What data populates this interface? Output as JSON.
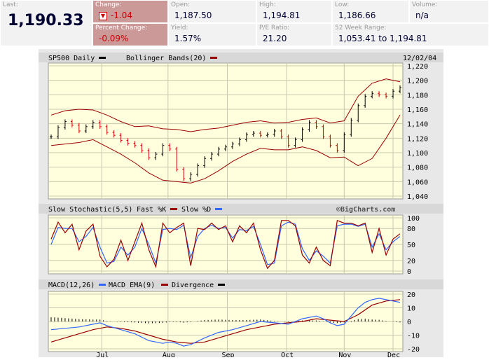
{
  "quote": {
    "last_label": "Last:",
    "last_value": "1,190.33",
    "change_label": "Change:",
    "change_value": "-1.04",
    "pct_label": "Percent Change:",
    "pct_value": "-0.09%",
    "open_label": "Open:",
    "open_value": "1,187.50",
    "yield_label": "Yield:",
    "yield_value": "1.57%",
    "high_label": "High:",
    "high_value": "1,194.81",
    "pe_label": "P/E Ratio:",
    "pe_value": "21.20",
    "low_label": "Low:",
    "low_value": "1,186.66",
    "range_label": "52 Week Range:",
    "range_value": "1,053.41 to 1,194.81",
    "volume_label": "Volume:",
    "volume_value": "n/a"
  },
  "colors": {
    "panel_bg": "#ffffdd",
    "header_bg": "#d8d8d8",
    "price_up": "#000000",
    "price_down": "#cc0000",
    "band": "#990000",
    "fast_k": "#990000",
    "slow_d": "#3366ff",
    "macd": "#3366ff",
    "macd_ema": "#990000",
    "divergence": "#000000"
  },
  "chart_data": {
    "type": "line",
    "date": "12/02/04",
    "watermark": "©BigCharts.com",
    "months": [
      "Jul",
      "Aug",
      "Sep",
      "Oct",
      "Nov",
      "Dec"
    ],
    "month_pos": [
      14.5,
      33.5,
      50.5,
      67.5,
      84,
      98
    ],
    "price": {
      "title": "SP500 Daily",
      "overlay_legend": "Bollinger Bands(20)",
      "ylim": [
        1040,
        1220
      ],
      "yticks": [
        1040,
        1060,
        1080,
        1100,
        1120,
        1140,
        1160,
        1180,
        1200,
        1220
      ],
      "close": [
        [
          0,
          1122
        ],
        [
          2,
          1135
        ],
        [
          4,
          1143
        ],
        [
          6,
          1138
        ],
        [
          8,
          1130
        ],
        [
          10,
          1136
        ],
        [
          12,
          1142
        ],
        [
          14,
          1136
        ],
        [
          16,
          1128
        ],
        [
          18,
          1124
        ],
        [
          20,
          1117
        ],
        [
          22,
          1113
        ],
        [
          24,
          1110
        ],
        [
          26,
          1103
        ],
        [
          28,
          1093
        ],
        [
          30,
          1098
        ],
        [
          32,
          1110
        ],
        [
          34,
          1105
        ],
        [
          36,
          1077
        ],
        [
          38,
          1064
        ],
        [
          40,
          1070
        ],
        [
          42,
          1082
        ],
        [
          44,
          1092
        ],
        [
          46,
          1098
        ],
        [
          48,
          1105
        ],
        [
          50,
          1108
        ],
        [
          52,
          1112
        ],
        [
          54,
          1118
        ],
        [
          56,
          1125
        ],
        [
          58,
          1127
        ],
        [
          60,
          1124
        ],
        [
          62,
          1125
        ],
        [
          64,
          1130
        ],
        [
          66,
          1122
        ],
        [
          68,
          1110
        ],
        [
          70,
          1118
        ],
        [
          72,
          1132
        ],
        [
          74,
          1142
        ],
        [
          76,
          1136
        ],
        [
          78,
          1122
        ],
        [
          80,
          1110
        ],
        [
          82,
          1103
        ],
        [
          84,
          1125
        ],
        [
          86,
          1145
        ],
        [
          88,
          1165
        ],
        [
          90,
          1178
        ],
        [
          92,
          1182
        ],
        [
          94,
          1180
        ],
        [
          96,
          1178
        ],
        [
          98,
          1185
        ],
        [
          100,
          1190
        ]
      ],
      "upper_band": [
        [
          0,
          1152
        ],
        [
          4,
          1158
        ],
        [
          8,
          1160
        ],
        [
          12,
          1159
        ],
        [
          16,
          1152
        ],
        [
          20,
          1143
        ],
        [
          24,
          1136
        ],
        [
          28,
          1137
        ],
        [
          32,
          1133
        ],
        [
          36,
          1132
        ],
        [
          40,
          1129
        ],
        [
          44,
          1132
        ],
        [
          48,
          1134
        ],
        [
          52,
          1138
        ],
        [
          56,
          1142
        ],
        [
          60,
          1144
        ],
        [
          64,
          1141
        ],
        [
          68,
          1142
        ],
        [
          72,
          1146
        ],
        [
          76,
          1148
        ],
        [
          80,
          1141
        ],
        [
          84,
          1144
        ],
        [
          88,
          1178
        ],
        [
          92,
          1196
        ],
        [
          96,
          1202
        ],
        [
          100,
          1198
        ]
      ],
      "lower_band": [
        [
          0,
          1110
        ],
        [
          4,
          1112
        ],
        [
          8,
          1114
        ],
        [
          12,
          1118
        ],
        [
          16,
          1108
        ],
        [
          20,
          1098
        ],
        [
          24,
          1086
        ],
        [
          28,
          1072
        ],
        [
          32,
          1062
        ],
        [
          36,
          1060
        ],
        [
          40,
          1058
        ],
        [
          44,
          1064
        ],
        [
          48,
          1075
        ],
        [
          52,
          1088
        ],
        [
          56,
          1098
        ],
        [
          60,
          1106
        ],
        [
          64,
          1104
        ],
        [
          68,
          1104
        ],
        [
          72,
          1108
        ],
        [
          76,
          1103
        ],
        [
          80,
          1093
        ],
        [
          84,
          1094
        ],
        [
          88,
          1082
        ],
        [
          92,
          1092
        ],
        [
          96,
          1120
        ],
        [
          100,
          1152
        ]
      ]
    },
    "stochastic": {
      "title": "Slow Stochastic(5,5)",
      "series_names": [
        "Fast %K",
        "Slow %D"
      ],
      "ylim": [
        0,
        100
      ],
      "yticks": [
        0,
        20,
        50,
        80,
        100
      ],
      "fast_k": [
        [
          0,
          60
        ],
        [
          2,
          92
        ],
        [
          4,
          72
        ],
        [
          6,
          88
        ],
        [
          8,
          40
        ],
        [
          10,
          75
        ],
        [
          12,
          88
        ],
        [
          14,
          28
        ],
        [
          16,
          8
        ],
        [
          18,
          22
        ],
        [
          20,
          58
        ],
        [
          22,
          20
        ],
        [
          24,
          55
        ],
        [
          26,
          90
        ],
        [
          28,
          40
        ],
        [
          30,
          8
        ],
        [
          32,
          90
        ],
        [
          34,
          72
        ],
        [
          36,
          82
        ],
        [
          38,
          90
        ],
        [
          40,
          10
        ],
        [
          42,
          80
        ],
        [
          44,
          78
        ],
        [
          46,
          90
        ],
        [
          48,
          78
        ],
        [
          50,
          85
        ],
        [
          52,
          55
        ],
        [
          54,
          85
        ],
        [
          56,
          72
        ],
        [
          58,
          90
        ],
        [
          60,
          40
        ],
        [
          62,
          5
        ],
        [
          64,
          20
        ],
        [
          66,
          95
        ],
        [
          68,
          95
        ],
        [
          70,
          85
        ],
        [
          72,
          30
        ],
        [
          74,
          15
        ],
        [
          76,
          45
        ],
        [
          78,
          20
        ],
        [
          80,
          10
        ],
        [
          82,
          95
        ],
        [
          84,
          90
        ],
        [
          86,
          90
        ],
        [
          88,
          85
        ],
        [
          90,
          90
        ],
        [
          92,
          35
        ],
        [
          94,
          80
        ],
        [
          96,
          30
        ],
        [
          98,
          60
        ],
        [
          100,
          70
        ]
      ],
      "slow_d": [
        [
          0,
          50
        ],
        [
          2,
          82
        ],
        [
          4,
          80
        ],
        [
          6,
          80
        ],
        [
          8,
          55
        ],
        [
          10,
          65
        ],
        [
          12,
          82
        ],
        [
          14,
          45
        ],
        [
          16,
          15
        ],
        [
          18,
          18
        ],
        [
          20,
          45
        ],
        [
          22,
          30
        ],
        [
          24,
          45
        ],
        [
          26,
          80
        ],
        [
          28,
          50
        ],
        [
          30,
          15
        ],
        [
          32,
          78
        ],
        [
          34,
          80
        ],
        [
          36,
          78
        ],
        [
          38,
          86
        ],
        [
          40,
          25
        ],
        [
          42,
          65
        ],
        [
          44,
          80
        ],
        [
          46,
          86
        ],
        [
          48,
          80
        ],
        [
          50,
          82
        ],
        [
          52,
          62
        ],
        [
          54,
          78
        ],
        [
          56,
          76
        ],
        [
          58,
          84
        ],
        [
          60,
          50
        ],
        [
          62,
          12
        ],
        [
          64,
          15
        ],
        [
          66,
          85
        ],
        [
          68,
          92
        ],
        [
          70,
          88
        ],
        [
          72,
          42
        ],
        [
          74,
          20
        ],
        [
          76,
          38
        ],
        [
          78,
          28
        ],
        [
          80,
          15
        ],
        [
          82,
          85
        ],
        [
          84,
          88
        ],
        [
          86,
          88
        ],
        [
          88,
          84
        ],
        [
          90,
          88
        ],
        [
          92,
          45
        ],
        [
          94,
          70
        ],
        [
          96,
          40
        ],
        [
          98,
          55
        ],
        [
          100,
          65
        ]
      ]
    },
    "macd": {
      "title": "MACD(12,26)",
      "series_names": [
        "MACD EMA(9)",
        "Divergence"
      ],
      "ylim": [
        -20,
        20
      ],
      "yticks": [
        -20,
        -10,
        0,
        10,
        20
      ],
      "macd": [
        [
          0,
          -6
        ],
        [
          4,
          -5
        ],
        [
          8,
          -4
        ],
        [
          12,
          -2
        ],
        [
          14,
          -1
        ],
        [
          16,
          -3
        ],
        [
          20,
          -6
        ],
        [
          24,
          -9
        ],
        [
          28,
          -14
        ],
        [
          32,
          -16
        ],
        [
          34,
          -15
        ],
        [
          36,
          -16
        ],
        [
          38,
          -18
        ],
        [
          40,
          -17
        ],
        [
          44,
          -12
        ],
        [
          48,
          -8
        ],
        [
          52,
          -6
        ],
        [
          56,
          -3
        ],
        [
          60,
          0
        ],
        [
          64,
          -1
        ],
        [
          68,
          -2
        ],
        [
          72,
          2
        ],
        [
          76,
          4
        ],
        [
          78,
          2
        ],
        [
          80,
          -1
        ],
        [
          82,
          -3
        ],
        [
          84,
          -2
        ],
        [
          86,
          4
        ],
        [
          88,
          10
        ],
        [
          90,
          14
        ],
        [
          92,
          16
        ],
        [
          94,
          17
        ],
        [
          96,
          16
        ],
        [
          98,
          15
        ],
        [
          100,
          14
        ]
      ],
      "macd_ema": [
        [
          0,
          -15
        ],
        [
          4,
          -12
        ],
        [
          8,
          -9
        ],
        [
          12,
          -6
        ],
        [
          16,
          -4
        ],
        [
          20,
          -5
        ],
        [
          24,
          -7
        ],
        [
          28,
          -10
        ],
        [
          32,
          -13
        ],
        [
          36,
          -15
        ],
        [
          40,
          -16
        ],
        [
          44,
          -15
        ],
        [
          48,
          -12
        ],
        [
          52,
          -9
        ],
        [
          56,
          -6
        ],
        [
          60,
          -4
        ],
        [
          64,
          -2
        ],
        [
          68,
          -1
        ],
        [
          72,
          0
        ],
        [
          76,
          2
        ],
        [
          80,
          1
        ],
        [
          84,
          0
        ],
        [
          88,
          5
        ],
        [
          92,
          12
        ],
        [
          96,
          15
        ],
        [
          100,
          16
        ]
      ]
    }
  }
}
